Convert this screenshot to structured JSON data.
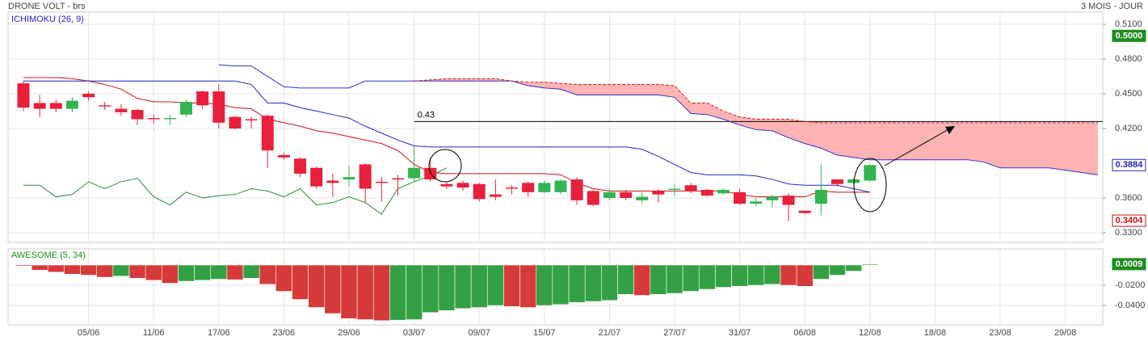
{
  "chart_data": [
    {
      "type": "candlestick",
      "title": "DRONE VOLT - brs",
      "subtitle": "3 MOIS - JOUR",
      "label": "ICHIMOKU (26, 9)",
      "categories": [
        null,
        null,
        null,
        null,
        "05/06",
        null,
        null,
        null,
        "11/06",
        null,
        null,
        null,
        "17/06",
        null,
        null,
        null,
        "23/06",
        null,
        null,
        null,
        "29/06",
        null,
        null,
        null,
        "03/07",
        null,
        null,
        null,
        "09/07",
        null,
        null,
        null,
        "15/07",
        null,
        null,
        null,
        "21/07",
        null,
        null,
        null,
        "27/07",
        null,
        null,
        null,
        "31/07",
        null,
        null,
        null,
        "06/08",
        null,
        null,
        null,
        "12/08",
        null,
        null,
        null,
        "18/08",
        null,
        null,
        null,
        "23/08",
        null,
        null,
        null,
        "29/08",
        null,
        null
      ],
      "open": [
        0.459,
        0.442,
        0.442,
        0.437,
        0.45,
        0.44,
        0.437,
        0.436,
        0.429,
        0.428,
        0.432,
        0.452,
        0.452,
        0.43,
        0.428,
        0.431,
        0.397,
        0.394,
        0.386,
        0.375,
        0.376,
        0.389,
        0.374,
        0.377,
        0.377,
        0.386,
        0.372,
        0.373,
        0.372,
        0.363,
        0.369,
        0.373,
        0.365,
        0.365,
        0.376,
        0.366,
        0.36,
        0.365,
        0.358,
        0.366,
        0.367,
        0.371,
        0.367,
        0.364,
        0.365,
        0.355,
        0.358,
        0.362,
        0.349,
        0.355,
        0.376,
        0.373,
        0.375,
        null,
        null,
        null,
        null,
        null,
        null,
        null,
        null,
        null,
        null,
        null,
        null,
        null,
        null
      ],
      "high": [
        0.461,
        0.449,
        0.445,
        0.447,
        0.452,
        0.443,
        0.441,
        0.437,
        0.432,
        0.432,
        0.445,
        0.453,
        0.458,
        0.431,
        0.43,
        0.432,
        0.399,
        0.395,
        0.387,
        0.381,
        0.388,
        0.39,
        0.378,
        0.38,
        0.405,
        0.395,
        0.374,
        0.375,
        0.373,
        0.376,
        0.371,
        0.374,
        0.375,
        0.376,
        0.378,
        0.367,
        0.368,
        0.367,
        0.365,
        0.368,
        0.372,
        0.373,
        0.368,
        0.368,
        0.368,
        0.36,
        0.363,
        0.364,
        0.349,
        0.389,
        0.376,
        0.377,
        0.389,
        null,
        null,
        null,
        null,
        null,
        null,
        null,
        null,
        null,
        null,
        null,
        null,
        null,
        null
      ],
      "low": [
        0.435,
        0.43,
        0.434,
        0.434,
        0.444,
        0.436,
        0.431,
        0.423,
        0.424,
        0.423,
        0.43,
        0.437,
        0.42,
        0.419,
        0.42,
        0.386,
        0.393,
        0.378,
        0.368,
        0.361,
        0.37,
        0.356,
        0.357,
        0.362,
        0.374,
        0.374,
        0.368,
        0.366,
        0.357,
        0.358,
        0.363,
        0.361,
        0.364,
        0.363,
        0.354,
        0.353,
        0.358,
        0.358,
        0.355,
        0.356,
        0.362,
        0.364,
        0.361,
        0.363,
        0.354,
        0.353,
        0.352,
        0.34,
        0.346,
        0.345,
        0.37,
        0.372,
        0.374,
        null,
        null,
        null,
        null,
        null,
        null,
        null,
        null,
        null,
        null,
        null,
        null,
        null,
        null
      ],
      "close": [
        0.438,
        0.437,
        0.437,
        0.444,
        0.447,
        0.439,
        0.434,
        0.428,
        0.428,
        0.429,
        0.443,
        0.44,
        0.425,
        0.42,
        0.427,
        0.401,
        0.395,
        0.381,
        0.37,
        0.373,
        0.378,
        0.368,
        0.373,
        0.376,
        0.386,
        0.376,
        0.37,
        0.369,
        0.359,
        0.361,
        0.368,
        0.365,
        0.373,
        0.375,
        0.358,
        0.354,
        0.365,
        0.36,
        0.361,
        0.363,
        0.368,
        0.366,
        0.362,
        0.367,
        0.355,
        0.357,
        0.361,
        0.354,
        0.347,
        0.367,
        0.372,
        0.376,
        0.3884,
        null,
        null,
        null,
        null,
        null,
        null,
        null,
        null,
        null,
        null,
        null,
        null,
        null,
        null
      ],
      "up_color": "#34b450",
      "down_color": "#e8203c",
      "cloud_color": "#ffb3b3",
      "series": [
        {
          "color": "#c81414",
          "values": [
            0.464,
            0.464,
            0.464,
            0.463,
            0.461,
            0.458,
            0.454,
            0.446,
            0.443,
            0.443,
            0.442,
            0.442,
            0.441,
            0.438,
            0.437,
            0.428,
            0.425,
            0.422,
            0.418,
            0.416,
            0.413,
            0.41,
            0.407,
            0.401,
            0.389,
            0.382,
            0.381,
            0.381,
            0.381,
            0.381,
            0.381,
            0.381,
            0.381,
            0.38,
            0.373,
            0.368,
            0.366,
            0.366,
            0.366,
            0.366,
            0.366,
            0.366,
            0.366,
            0.366,
            0.363,
            0.361,
            0.361,
            0.361,
            0.361,
            0.366,
            0.365,
            0.365,
            0.365,
            null,
            null,
            null,
            null,
            null,
            null,
            null,
            null,
            null,
            null,
            null,
            null,
            null,
            null
          ]
        },
        {
          "color": "#2424cc",
          "values": [
            0.461,
            0.461,
            0.461,
            0.461,
            0.461,
            0.461,
            0.461,
            0.461,
            0.461,
            0.461,
            0.461,
            0.461,
            0.461,
            0.461,
            0.458,
            0.442,
            0.442,
            0.438,
            0.435,
            0.432,
            0.429,
            0.422,
            0.416,
            0.41,
            0.405,
            0.404,
            0.404,
            0.404,
            0.404,
            0.404,
            0.404,
            0.404,
            0.404,
            0.404,
            0.404,
            0.404,
            0.404,
            0.404,
            0.402,
            0.396,
            0.389,
            0.382,
            0.38,
            0.38,
            0.38,
            0.379,
            0.376,
            0.372,
            0.371,
            0.371,
            0.371,
            0.368,
            0.365,
            null,
            null,
            null,
            null,
            null,
            null,
            null,
            null,
            null,
            null,
            null,
            null,
            null,
            null
          ]
        },
        {
          "color": "#3030d0",
          "values": [
            null,
            null,
            null,
            null,
            null,
            null,
            null,
            null,
            null,
            null,
            null,
            null,
            0.475,
            0.474,
            0.474,
            0.465,
            0.456,
            0.455,
            0.455,
            0.455,
            0.455,
            0.461,
            0.461,
            0.461,
            0.461,
            0.461,
            0.461,
            0.461,
            0.461,
            0.461,
            0.461,
            0.457,
            0.455,
            0.454,
            0.449,
            0.449,
            0.449,
            0.449,
            0.449,
            0.449,
            0.447,
            0.433,
            0.432,
            0.428,
            0.423,
            0.419,
            0.418,
            0.412,
            0.407,
            0.403,
            0.397,
            0.395,
            0.393,
            0.393,
            0.393,
            0.393,
            0.393,
            0.393,
            0.393,
            0.391,
            0.386,
            0.386,
            0.386,
            0.386,
            0.384,
            0.382,
            0.38
          ]
        },
        {
          "color": "#c82020",
          "dash": true,
          "values": [
            null,
            null,
            null,
            null,
            null,
            null,
            null,
            null,
            null,
            null,
            null,
            null,
            null,
            null,
            null,
            null,
            null,
            null,
            null,
            null,
            null,
            null,
            null,
            null,
            0.461,
            0.462,
            0.463,
            0.463,
            0.463,
            0.463,
            0.461,
            0.46,
            0.46,
            0.459,
            0.458,
            0.458,
            0.458,
            0.458,
            0.458,
            0.458,
            0.457,
            0.442,
            0.442,
            0.435,
            0.43,
            0.428,
            0.428,
            0.428,
            0.426,
            0.425,
            0.425,
            0.425,
            0.425,
            0.425,
            0.425,
            0.425,
            0.425,
            0.425,
            0.425,
            0.425,
            0.425,
            0.425,
            0.425,
            0.425,
            0.425,
            0.425,
            0.425
          ]
        },
        {
          "color": "#2e8b2e",
          "values": [
            0.371,
            0.371,
            0.361,
            0.363,
            0.374,
            0.368,
            0.374,
            0.377,
            0.361,
            0.354,
            0.365,
            0.36,
            0.362,
            0.363,
            0.368,
            0.366,
            0.361,
            0.368,
            0.354,
            0.356,
            0.361,
            0.356,
            0.346,
            0.368,
            0.374,
            0.379,
            0.386,
            null,
            null,
            null,
            null,
            null,
            null,
            null,
            null,
            null,
            null,
            null,
            null,
            null,
            null,
            null,
            null,
            null,
            null,
            null,
            null,
            null,
            null,
            null,
            null,
            null,
            null,
            null,
            null,
            null,
            null,
            null,
            null,
            null,
            null,
            null,
            null,
            null,
            null,
            null,
            null
          ]
        }
      ],
      "hline": {
        "value": 0.426,
        "label": "0.43"
      },
      "price_tags": [
        {
          "value": 0.5,
          "label": "0.5000",
          "color": "#1e8c1e",
          "filled": true
        },
        {
          "value": 0.3884,
          "label": "0.3884",
          "color": "#2424cc",
          "filled": false
        },
        {
          "value": 0.3404,
          "label": "0.3404",
          "color": "#cc1010",
          "filled": false
        }
      ],
      "ylim": [
        0.3216,
        0.5205
      ],
      "yticks": [
        {
          "value": 0.51,
          "label": "0.5100"
        },
        {
          "value": 0.48,
          "label": "0.4800"
        },
        {
          "value": 0.45,
          "label": "0.4500"
        },
        {
          "value": 0.42,
          "label": "0.4200"
        },
        {
          "value": 0.36,
          "label": "0.3600"
        },
        {
          "value": 0.33,
          "label": "0.3300"
        }
      ],
      "grid": true
    },
    {
      "type": "bar",
      "label": "AWESOME (5, 34)",
      "values": [
        -0.001,
        -0.005,
        -0.007,
        -0.009,
        -0.01,
        -0.012,
        -0.011,
        -0.013,
        -0.015,
        -0.018,
        -0.016,
        -0.015,
        -0.014,
        -0.0145,
        -0.013,
        -0.019,
        -0.026,
        -0.034,
        -0.042,
        -0.048,
        -0.053,
        -0.054,
        -0.055,
        -0.0545,
        -0.054,
        -0.047,
        -0.045,
        -0.043,
        -0.042,
        -0.04,
        -0.041,
        -0.042,
        -0.04,
        -0.039,
        -0.037,
        -0.036,
        -0.035,
        -0.029,
        -0.03,
        -0.029,
        -0.028,
        -0.026,
        -0.024,
        -0.022,
        -0.021,
        -0.02,
        -0.019,
        -0.02,
        -0.021,
        -0.014,
        -0.01,
        -0.006,
        0.0009,
        null,
        null,
        null,
        null,
        null,
        null,
        null,
        null,
        null,
        null,
        null,
        null,
        null,
        null
      ],
      "up_color": "#33a043",
      "down_color": "#d63a3a",
      "price_tags": [
        {
          "value": 0.0009,
          "label": "0.0009",
          "color": "#1e8c1e",
          "filled": true
        }
      ],
      "ylim": [
        -0.0592,
        0.016
      ],
      "yticks": [
        {
          "value": -0.02,
          "label": "-0.0200"
        },
        {
          "value": -0.04,
          "label": "-0.0400"
        }
      ],
      "grid": true
    }
  ]
}
